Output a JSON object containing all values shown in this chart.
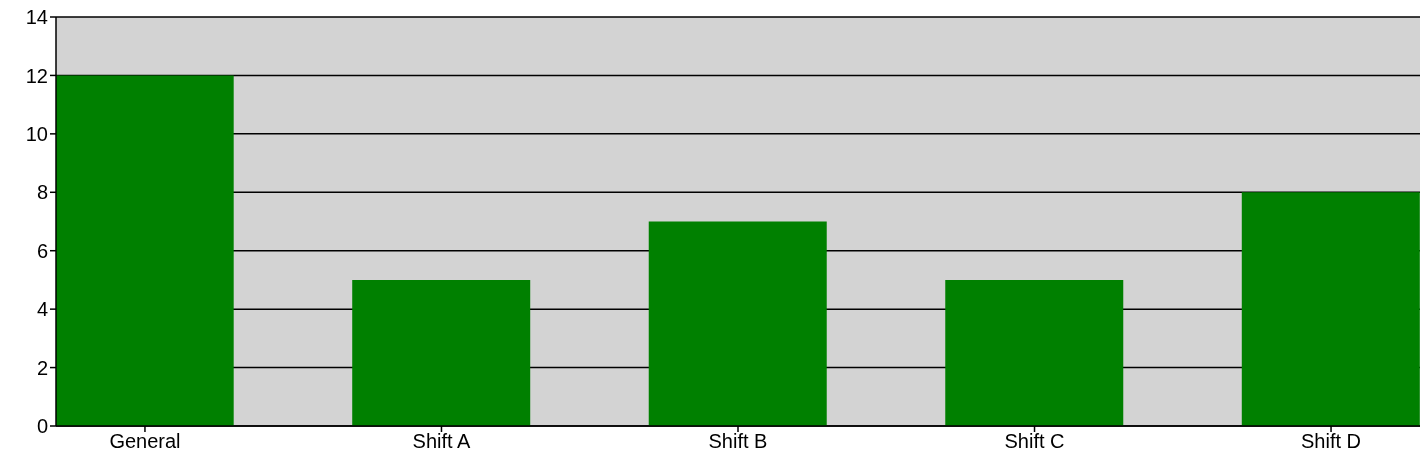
{
  "chart_data": {
    "type": "bar",
    "categories": [
      "General",
      "Shift A",
      "Shift B",
      "Shift C",
      "Shift D"
    ],
    "values": [
      12,
      5,
      7,
      5,
      8
    ],
    "color": "#008000",
    "ylim": [
      0,
      14
    ],
    "yticks": [
      0,
      2,
      4,
      6,
      8,
      10,
      12,
      14
    ],
    "grid": "y"
  }
}
